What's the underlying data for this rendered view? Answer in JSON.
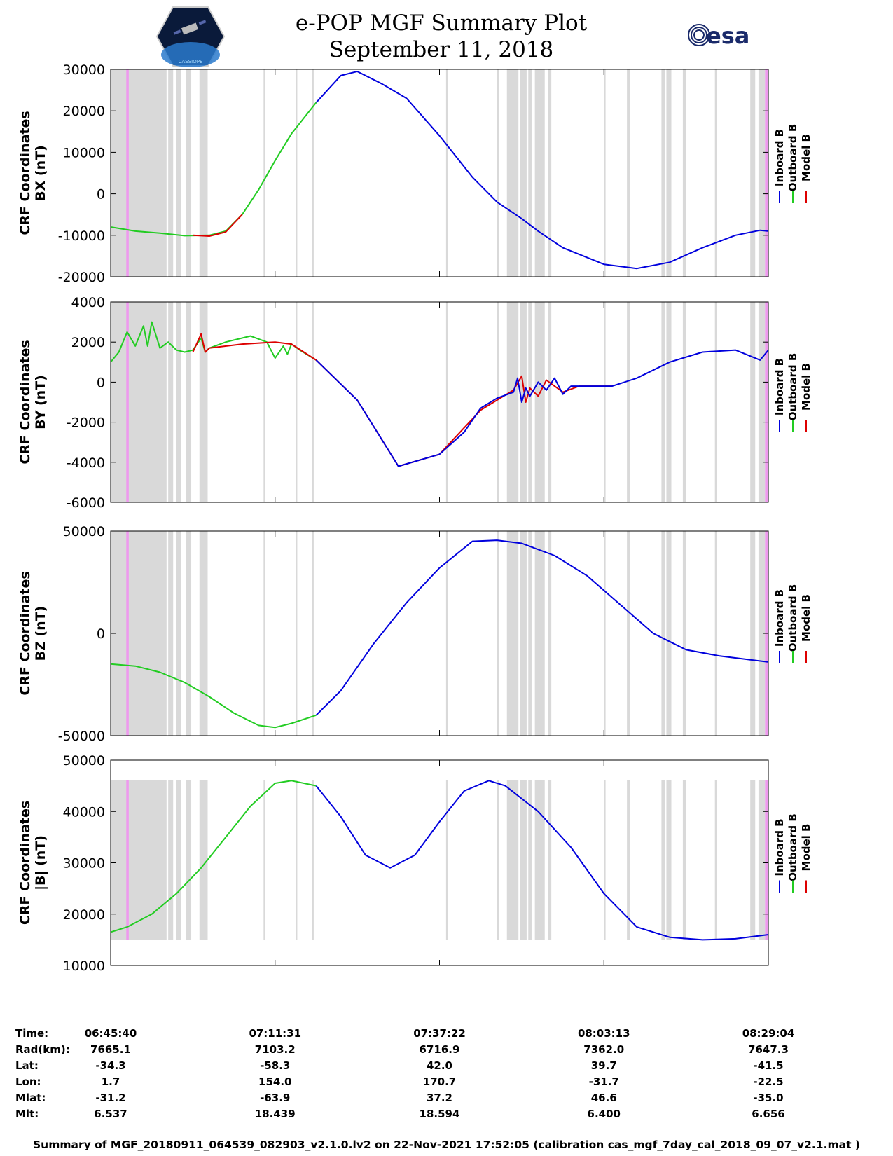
{
  "header": {
    "title": "e-POP MGF Summary Plot",
    "date": "September 11, 2018",
    "agency_logo_text": "esa",
    "mission_logo_text": "CASSIOPE"
  },
  "colors": {
    "inboard": "#0000dd",
    "outboard": "#22cc22",
    "model": "#dd0000",
    "data_gap": "#d9d9d9",
    "flag": "#ee99ee"
  },
  "legend": [
    {
      "label": "Inboard B",
      "color": "#0000dd"
    },
    {
      "label": "Outboard B",
      "color": "#22cc22"
    },
    {
      "label": "Model B",
      "color": "#dd0000"
    }
  ],
  "chart_data": [
    {
      "type": "line",
      "id": "bx",
      "ylabel_lines": [
        "CRF Coordinates",
        "BX (nT)"
      ],
      "ylim": [
        -20000,
        30000
      ],
      "yticks": [
        -20000,
        -10000,
        0,
        10000,
        20000,
        30000
      ],
      "ytick_labels": [
        "-20000",
        "-10000",
        "0",
        "10000",
        "20000",
        "30000"
      ],
      "series": [
        {
          "name": "Outboard B",
          "x": [
            0,
            3,
            6,
            9,
            12,
            14,
            16,
            18,
            20,
            22,
            25
          ],
          "values": [
            -8000,
            -9000,
            -9500,
            -10100,
            -10000,
            -9000,
            -5000,
            1000,
            8000,
            14500,
            22000
          ]
        },
        {
          "name": "Model B",
          "x": [
            10,
            12,
            14,
            16
          ],
          "values": [
            -10000,
            -10200,
            -9200,
            -5000
          ]
        },
        {
          "name": "Inboard B",
          "x": [
            25,
            28,
            30,
            33,
            36,
            40,
            44,
            47,
            50,
            52,
            55,
            60,
            64,
            68,
            72,
            76,
            79,
            80
          ],
          "values": [
            22000,
            28500,
            29500,
            26500,
            23000,
            14000,
            4000,
            -2000,
            -6000,
            -9000,
            -13000,
            -17000,
            -18000,
            -16500,
            -13000,
            -10000,
            -8800,
            -9000
          ]
        }
      ]
    },
    {
      "type": "line",
      "id": "by",
      "ylabel_lines": [
        "CRF Coordinates",
        "BY (nT)"
      ],
      "ylim": [
        -6000,
        4000
      ],
      "yticks": [
        -6000,
        -4000,
        -2000,
        0,
        2000,
        4000
      ],
      "ytick_labels": [
        "-6000",
        "-4000",
        "-2000",
        "0",
        "2000",
        "4000"
      ],
      "series": [
        {
          "name": "Outboard B",
          "x": [
            0,
            1,
            2,
            3,
            4,
            4.5,
            5,
            6,
            7,
            8,
            9,
            10,
            11,
            11.5,
            12,
            14,
            17,
            19,
            20,
            21,
            21.5,
            22,
            23,
            25
          ],
          "values": [
            1000,
            1500,
            2500,
            1800,
            2800,
            1800,
            3000,
            1700,
            2000,
            1600,
            1500,
            1600,
            2200,
            1500,
            1700,
            2000,
            2300,
            2000,
            1200,
            1800,
            1400,
            1900,
            1600,
            1100
          ]
        },
        {
          "name": "Model B",
          "x": [
            10,
            11,
            11.5,
            12,
            16,
            20,
            22,
            25,
            30,
            35,
            40,
            45,
            49,
            50,
            50.5,
            51,
            52,
            53,
            55,
            57,
            61
          ],
          "values": [
            1500,
            2400,
            1500,
            1700,
            1900,
            2000,
            1900,
            1100,
            -900,
            -4200,
            -3600,
            -1400,
            -400,
            300,
            -1000,
            -300,
            -700,
            100,
            -500,
            -200,
            -200
          ]
        },
        {
          "name": "Inboard B",
          "x": [
            25,
            30,
            35,
            40,
            43,
            45,
            47,
            49,
            49.5,
            50,
            50.5,
            51,
            52,
            53,
            54,
            55,
            56,
            57,
            58,
            61,
            64,
            68,
            72,
            76,
            79,
            80
          ],
          "values": [
            1100,
            -900,
            -4200,
            -3600,
            -2500,
            -1300,
            -800,
            -500,
            200,
            -1000,
            -300,
            -700,
            0,
            -400,
            200,
            -600,
            -200,
            -200,
            -200,
            -200,
            200,
            1000,
            1500,
            1600,
            1100,
            1600
          ]
        }
      ]
    },
    {
      "type": "line",
      "id": "bz",
      "ylabel_lines": [
        "CRF Coordinates",
        "BZ (nT)"
      ],
      "ylim": [
        -50000,
        50000
      ],
      "yticks": [
        -50000,
        0,
        50000
      ],
      "ytick_labels": [
        "-50000",
        "0",
        "50000"
      ],
      "series": [
        {
          "name": "Outboard B",
          "x": [
            0,
            3,
            6,
            9,
            12,
            15,
            18,
            20,
            22,
            25
          ],
          "values": [
            -15000,
            -16000,
            -19000,
            -24000,
            -31000,
            -39000,
            -45000,
            -46000,
            -44000,
            -40000
          ]
        },
        {
          "name": "Inboard B",
          "x": [
            25,
            28,
            32,
            36,
            40,
            44,
            47,
            50,
            54,
            58,
            62,
            66,
            68,
            70,
            74,
            78,
            80
          ],
          "values": [
            -40000,
            -28000,
            -5000,
            15000,
            32000,
            45000,
            45500,
            44000,
            38000,
            28000,
            14000,
            0,
            -4000,
            -8000,
            -11000,
            -13000,
            -14000
          ]
        }
      ]
    },
    {
      "type": "line",
      "id": "bmag",
      "ylabel_lines": [
        "CRF Coordinates",
        "|B| (nT)"
      ],
      "ylim": [
        10000,
        50000
      ],
      "yticks": [
        10000,
        20000,
        30000,
        40000,
        50000
      ],
      "ytick_labels": [
        "10000",
        "20000",
        "30000",
        "40000",
        "50000"
      ],
      "series": [
        {
          "name": "Outboard B",
          "x": [
            0,
            2,
            5,
            8,
            11,
            14,
            17,
            20,
            22,
            25
          ],
          "values": [
            16500,
            17500,
            20000,
            24000,
            29000,
            35000,
            41000,
            45500,
            46000,
            45000
          ]
        },
        {
          "name": "Inboard B",
          "x": [
            25,
            28,
            31,
            34,
            37,
            40,
            43,
            46,
            48,
            52,
            56,
            60,
            64,
            68,
            72,
            76,
            80
          ],
          "values": [
            45000,
            39000,
            31500,
            29000,
            31500,
            38000,
            44000,
            46000,
            45000,
            40000,
            33000,
            24000,
            17500,
            15500,
            15000,
            15200,
            16000
          ]
        }
      ]
    }
  ],
  "shared_x": {
    "label": "Time",
    "range_minutes": [
      0,
      80
    ],
    "gap_bands": [
      [
        0,
        6.8
      ],
      [
        7,
        7.6
      ],
      [
        8,
        8.6
      ],
      [
        9.2,
        9.8
      ],
      [
        10.8,
        11.8
      ],
      [
        18.6,
        18.8
      ],
      [
        22.5,
        22.7
      ],
      [
        24.5,
        24.7
      ],
      [
        40.8,
        41
      ],
      [
        47,
        47.2
      ],
      [
        48.2,
        49.6
      ],
      [
        49.8,
        50.6
      ],
      [
        50.8,
        51.2
      ],
      [
        51.6,
        52.8
      ],
      [
        53.2,
        53.6
      ],
      [
        60,
        60.2
      ],
      [
        62.8,
        63.2
      ],
      [
        67,
        67.4
      ],
      [
        67.6,
        68.2
      ],
      [
        69.6,
        70
      ],
      [
        73.5,
        73.7
      ],
      [
        77.8,
        78.4
      ],
      [
        78.8,
        79.6
      ]
    ],
    "flag_bands": [
      [
        1.9,
        2.2
      ],
      [
        79.6,
        80
      ]
    ]
  },
  "info_table": {
    "labels": [
      "Time:",
      "Rad(km):",
      "Lat:",
      "Lon:",
      "Mlat:",
      "Mlt:"
    ],
    "columns": [
      [
        "06:45:40",
        "7665.1",
        "-34.3",
        "1.7",
        "-31.2",
        "6.537"
      ],
      [
        "07:11:31",
        "7103.2",
        "-58.3",
        "154.0",
        "-63.9",
        "18.439"
      ],
      [
        "07:37:22",
        "6716.9",
        "42.0",
        "170.7",
        "37.2",
        "18.594"
      ],
      [
        "08:03:13",
        "7362.0",
        "39.7",
        "-31.7",
        "46.6",
        "6.400"
      ],
      [
        "08:29:04",
        "7647.3",
        "-41.5",
        "-22.5",
        "-35.0",
        "6.656"
      ]
    ]
  },
  "footer": "Summary of MGF_20180911_064539_082903_v2.1.0.lv2 on 22-Nov-2021 17:52:05 (calibration cas_mgf_7day_cal_2018_09_07_v2.1.mat )"
}
